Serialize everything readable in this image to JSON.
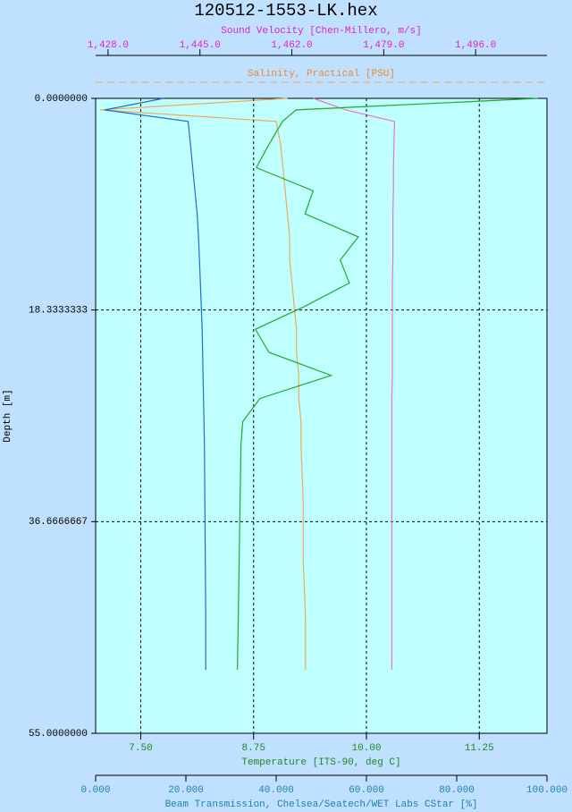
{
  "chart_data": {
    "type": "profile",
    "title": "120512-1553-LK.hex",
    "ylabel": "Depth [m]",
    "y_inverted": true,
    "ylim": [
      0,
      55
    ],
    "yticks": [
      {
        "value": 0,
        "label": "0.0000000"
      },
      {
        "value": 18.3333333,
        "label": "18.3333333"
      },
      {
        "value": 36.6666667,
        "label": "36.6666667"
      },
      {
        "value": 55,
        "label": "55.0000000"
      }
    ],
    "depth": [
      0,
      1,
      2,
      4,
      6,
      8,
      10,
      12,
      14,
      16,
      18,
      20,
      22,
      24,
      26,
      28,
      30,
      35,
      40,
      45,
      49.5
    ],
    "x_axes": [
      {
        "label": "Sound Velocity [Chen-Millero, m/s]",
        "side": "top",
        "color": "#e020c8",
        "line_color": "#f070c8",
        "xlim": [
          1425.7,
          1509.2
        ],
        "xticks": [
          {
            "value": 1428,
            "label": "1,428.0"
          },
          {
            "value": 1445,
            "label": "1,445.0"
          },
          {
            "value": 1462,
            "label": "1,462.0"
          },
          {
            "value": 1479,
            "label": "1,479.0"
          },
          {
            "value": 1496,
            "label": "1,496.0"
          }
        ],
        "values": [
          1466,
          1472,
          1481,
          1480.9,
          1480.8,
          1480.8,
          1480.7,
          1480.7,
          1480.7,
          1480.6,
          1480.6,
          1480.6,
          1480.6,
          1480.6,
          1480.5,
          1480.5,
          1480.5,
          1480.5,
          1480.5,
          1480.5,
          1480.5
        ]
      },
      {
        "label": "Salinity, Practical [PSU]",
        "side": "top",
        "color": "#f08828",
        "line_color": "#f0a858",
        "dashed": true,
        "xlim": [
          0,
          0.2
        ],
        "values": [
          0.085,
          0.002,
          0.08,
          0.082,
          0.083,
          0.084,
          0.085,
          0.086,
          0.086,
          0.087,
          0.088,
          0.089,
          0.089,
          0.09,
          0.09,
          0.091,
          0.091,
          0.092,
          0.092,
          0.093,
          0.093
        ]
      },
      {
        "label": "Temperature [ITS-90, deg C]",
        "side": "bottom",
        "color": "#208820",
        "line_color": "#22aa22",
        "grid": true,
        "xlim": [
          7.0,
          12.0
        ],
        "xticks": [
          {
            "value": 7.5,
            "label": "7.50"
          },
          {
            "value": 8.75,
            "label": "8.75"
          },
          {
            "value": 10,
            "label": "10.00"
          },
          {
            "value": 11.25,
            "label": "11.25"
          }
        ],
        "values": [
          11.9,
          9.22,
          9.07,
          8.92,
          8.78,
          9.41,
          9.32,
          9.91,
          9.71,
          9.81,
          9.32,
          8.77,
          8.92,
          9.61,
          8.82,
          8.63,
          8.61,
          8.6,
          8.59,
          8.58,
          8.57
        ]
      },
      {
        "label": "Beam Transmission, Chelsea/Seatech/WET Labs CStar [%]",
        "side": "bottom",
        "color": "#2080a8",
        "line_color": "#1a6fd0",
        "xlim": [
          0,
          100
        ],
        "xticks": [
          {
            "value": 0,
            "label": "0.000"
          },
          {
            "value": 20,
            "label": "20.000"
          },
          {
            "value": 40,
            "label": "40.000"
          },
          {
            "value": 60,
            "label": "60.000"
          },
          {
            "value": 80,
            "label": "80.000"
          },
          {
            "value": 100,
            "label": "100.000"
          }
        ],
        "values": [
          15,
          2,
          20.5,
          21,
          21.5,
          22,
          22.5,
          22.8,
          23,
          23.2,
          23.4,
          23.6,
          23.7,
          23.8,
          23.9,
          24,
          24.1,
          24.2,
          24.3,
          24.4,
          24.4
        ]
      }
    ]
  }
}
